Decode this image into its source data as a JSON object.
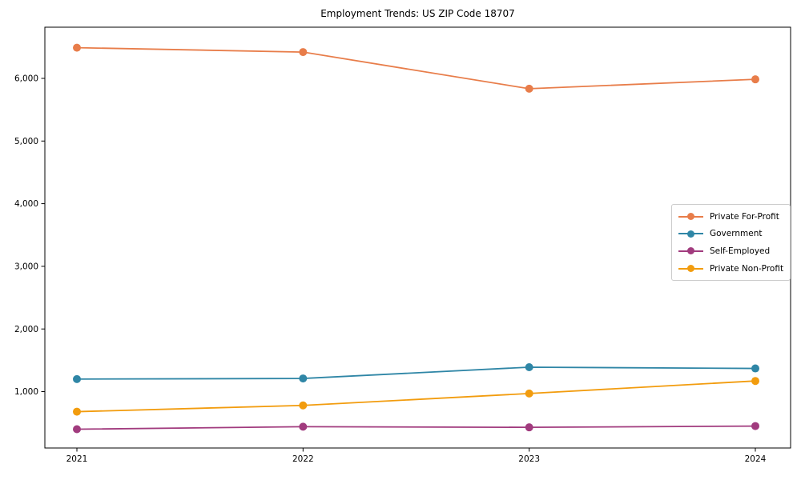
{
  "title": "Employment Trends: US ZIP Code 18707",
  "colors": {
    "private_for_profit": "#E87D4A",
    "government": "#2F86A6",
    "self_employed": "#A13B7E",
    "private_non_profit": "#F29C0E",
    "axis": "#000000",
    "legend_border": "#cccccc",
    "background": "#ffffff"
  },
  "chart_data": {
    "type": "line",
    "title": "Employment Trends: US ZIP Code 18707",
    "xlabel": "",
    "ylabel": "",
    "x": [
      2021,
      2022,
      2023,
      2024
    ],
    "xtick_labels": [
      "2021",
      "2022",
      "2023",
      "2024"
    ],
    "yticks": [
      1000,
      2000,
      3000,
      4000,
      5000,
      6000
    ],
    "ytick_labels": [
      "1,000",
      "2,000",
      "3,000",
      "4,000",
      "5,000",
      "6,000"
    ],
    "ylim": [
      100,
      6817
    ],
    "grid": false,
    "marker": "circle",
    "legend_position": "center right",
    "series": [
      {
        "name": "Private For-Profit",
        "color": "#E87D4A",
        "values": [
          6490,
          6420,
          5835,
          5985
        ]
      },
      {
        "name": "Government",
        "color": "#2F86A6",
        "values": [
          1200,
          1210,
          1390,
          1370
        ]
      },
      {
        "name": "Self-Employed",
        "color": "#A13B7E",
        "values": [
          400,
          440,
          430,
          450
        ]
      },
      {
        "name": "Private Non-Profit",
        "color": "#F29C0E",
        "values": [
          680,
          780,
          970,
          1170
        ]
      }
    ]
  }
}
